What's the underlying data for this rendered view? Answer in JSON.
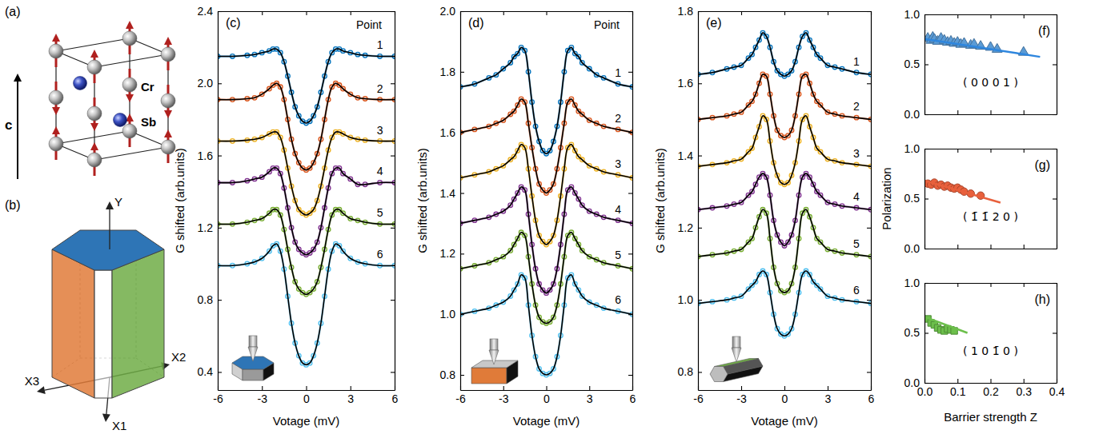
{
  "chart_data": [
    {
      "type": "line",
      "panel": "(c)",
      "x_label": "Votage (mV)",
      "y_label": "G shifted (arb.units)",
      "annotations": [
        "Point"
      ],
      "marker": "circle",
      "line_style": "solid",
      "xlim": [
        -6,
        6
      ],
      "xticks": [
        -6,
        -3,
        0,
        3,
        6
      ],
      "ylim": [
        0.3,
        2.4
      ],
      "yticks": [
        0.4,
        0.8,
        1.2,
        1.6,
        {
          "value": 2,
          "label": "2.0"
        },
        2.4
      ],
      "x": [
        -6,
        -5,
        -4,
        -3.5,
        -3,
        -2.5,
        -2.25,
        -2,
        -1.75,
        -1.5,
        -1.25,
        -1,
        -0.75,
        -0.5,
        -0.25,
        0,
        0.25,
        0.5,
        0.75,
        1,
        1.25,
        1.5,
        1.75,
        2,
        2.25,
        2.5,
        3,
        3.5,
        4,
        5,
        6
      ],
      "series": [
        {
          "name": "1",
          "color": "#0072bd",
          "values": [
            2.15,
            2.15,
            2.155,
            2.16,
            2.17,
            2.18,
            2.19,
            2.19,
            2.17,
            2.12,
            2.04,
            1.95,
            1.87,
            1.82,
            1.79,
            1.78,
            1.79,
            1.82,
            1.87,
            1.95,
            2.04,
            2.12,
            2.17,
            2.19,
            2.19,
            2.18,
            2.17,
            2.16,
            2.155,
            2.15,
            2.15
          ]
        },
        {
          "name": "2",
          "color": "#d95319",
          "values": [
            1.91,
            1.91,
            1.915,
            1.92,
            1.94,
            1.97,
            1.99,
            2.0,
            1.98,
            1.91,
            1.8,
            1.69,
            1.61,
            1.56,
            1.53,
            1.52,
            1.53,
            1.56,
            1.61,
            1.69,
            1.8,
            1.91,
            1.98,
            2.0,
            1.99,
            1.97,
            1.94,
            1.92,
            1.915,
            1.91,
            1.91
          ]
        },
        {
          "name": "3",
          "color": "#edb120",
          "values": [
            1.68,
            1.68,
            1.685,
            1.69,
            1.7,
            1.72,
            1.73,
            1.73,
            1.7,
            1.63,
            1.53,
            1.43,
            1.35,
            1.3,
            1.28,
            1.27,
            1.28,
            1.3,
            1.35,
            1.43,
            1.53,
            1.63,
            1.7,
            1.73,
            1.73,
            1.72,
            1.7,
            1.69,
            1.685,
            1.68,
            1.68
          ]
        },
        {
          "name": "4",
          "color": "#7e2f8e",
          "values": [
            1.45,
            1.45,
            1.46,
            1.47,
            1.48,
            1.51,
            1.53,
            1.53,
            1.5,
            1.42,
            1.31,
            1.2,
            1.12,
            1.08,
            1.06,
            1.05,
            1.06,
            1.08,
            1.12,
            1.2,
            1.31,
            1.42,
            1.5,
            1.53,
            1.53,
            1.5,
            1.47,
            1.44,
            1.44,
            1.45,
            1.45
          ]
        },
        {
          "name": "5",
          "color": "#77ac30",
          "values": [
            1.22,
            1.22,
            1.23,
            1.24,
            1.25,
            1.28,
            1.3,
            1.3,
            1.27,
            1.19,
            1.08,
            0.98,
            0.9,
            0.86,
            0.84,
            0.83,
            0.84,
            0.86,
            0.9,
            0.98,
            1.08,
            1.19,
            1.27,
            1.3,
            1.3,
            1.28,
            1.25,
            1.24,
            1.23,
            1.22,
            1.22
          ]
        },
        {
          "name": "6",
          "color": "#4dbeee",
          "values": [
            0.99,
            0.99,
            1.0,
            1.01,
            1.03,
            1.07,
            1.1,
            1.11,
            1.07,
            0.97,
            0.82,
            0.67,
            0.56,
            0.49,
            0.45,
            0.44,
            0.45,
            0.49,
            0.56,
            0.67,
            0.82,
            0.97,
            1.07,
            1.11,
            1.1,
            1.07,
            1.03,
            1.01,
            1.0,
            0.99,
            0.99
          ]
        }
      ]
    },
    {
      "type": "line",
      "panel": "(d)",
      "x_label": "Votage (mV)",
      "y_label": "G shifted (arb.units)",
      "annotations": [
        "Point"
      ],
      "marker": "circle",
      "line_style": "solid",
      "xlim": [
        -6,
        6
      ],
      "xticks": [
        -6,
        -3,
        0,
        3,
        6
      ],
      "ylim": [
        0.75,
        2.0
      ],
      "yticks": [
        0.8,
        {
          "value": 1,
          "label": "1.0"
        },
        1.2,
        1.4,
        1.6,
        1.8,
        {
          "value": 2,
          "label": "2.0"
        }
      ],
      "x": [
        -6,
        -5,
        -4,
        -3.5,
        -3,
        -2.5,
        -2.25,
        -2,
        -1.75,
        -1.5,
        -1.25,
        -1,
        -0.75,
        -0.5,
        -0.25,
        0,
        0.25,
        0.5,
        0.75,
        1,
        1.25,
        1.5,
        1.75,
        2,
        2.25,
        2.5,
        3,
        3.5,
        4,
        5,
        6
      ],
      "series": [
        {
          "name": "1",
          "color": "#0072bd",
          "values": [
            1.75,
            1.76,
            1.78,
            1.79,
            1.81,
            1.83,
            1.85,
            1.86,
            1.88,
            1.87,
            1.8,
            1.7,
            1.62,
            1.57,
            1.54,
            1.53,
            1.54,
            1.57,
            1.62,
            1.7,
            1.8,
            1.87,
            1.88,
            1.86,
            1.85,
            1.83,
            1.81,
            1.79,
            1.78,
            1.76,
            1.75
          ]
        },
        {
          "name": "2",
          "color": "#d95319",
          "values": [
            1.6,
            1.61,
            1.62,
            1.63,
            1.64,
            1.66,
            1.67,
            1.69,
            1.71,
            1.7,
            1.63,
            1.55,
            1.48,
            1.43,
            1.41,
            1.4,
            1.41,
            1.43,
            1.48,
            1.55,
            1.63,
            1.7,
            1.71,
            1.69,
            1.67,
            1.66,
            1.64,
            1.63,
            1.62,
            1.61,
            1.6
          ]
        },
        {
          "name": "3",
          "color": "#edb120",
          "values": [
            1.45,
            1.46,
            1.47,
            1.48,
            1.49,
            1.51,
            1.52,
            1.54,
            1.56,
            1.55,
            1.48,
            1.39,
            1.31,
            1.26,
            1.24,
            1.23,
            1.24,
            1.26,
            1.31,
            1.39,
            1.48,
            1.55,
            1.56,
            1.54,
            1.52,
            1.51,
            1.49,
            1.48,
            1.47,
            1.46,
            1.45
          ]
        },
        {
          "name": "4",
          "color": "#7e2f8e",
          "values": [
            1.3,
            1.31,
            1.32,
            1.33,
            1.34,
            1.36,
            1.38,
            1.4,
            1.42,
            1.41,
            1.33,
            1.23,
            1.15,
            1.1,
            1.08,
            1.07,
            1.08,
            1.1,
            1.15,
            1.23,
            1.33,
            1.41,
            1.42,
            1.4,
            1.38,
            1.36,
            1.34,
            1.33,
            1.32,
            1.31,
            1.3
          ]
        },
        {
          "name": "5",
          "color": "#77ac30",
          "values": [
            1.15,
            1.16,
            1.17,
            1.18,
            1.19,
            1.21,
            1.23,
            1.25,
            1.27,
            1.26,
            1.19,
            1.1,
            1.03,
            0.99,
            0.975,
            0.97,
            0.975,
            0.99,
            1.03,
            1.1,
            1.19,
            1.26,
            1.27,
            1.25,
            1.23,
            1.21,
            1.19,
            1.18,
            1.17,
            1.16,
            1.15
          ]
        },
        {
          "name": "6",
          "color": "#4dbeee",
          "values": [
            1.0,
            1.01,
            1.02,
            1.03,
            1.04,
            1.06,
            1.08,
            1.1,
            1.13,
            1.12,
            1.03,
            0.93,
            0.86,
            0.82,
            0.805,
            0.8,
            0.805,
            0.82,
            0.86,
            0.93,
            1.03,
            1.12,
            1.13,
            1.1,
            1.08,
            1.06,
            1.04,
            1.03,
            1.02,
            1.01,
            1.0
          ]
        }
      ]
    },
    {
      "type": "line",
      "panel": "(e)",
      "x_label": "Votage (mV)",
      "y_label": "G shifted (arb.units)",
      "marker": "circle",
      "line_style": "solid",
      "xlim": [
        -6,
        6
      ],
      "xticks": [
        -6,
        -3,
        0,
        3,
        6
      ],
      "ylim": [
        0.75,
        1.8
      ],
      "yticks": [
        0.8,
        {
          "value": 1,
          "label": "1.0"
        },
        1.2,
        1.4,
        1.6,
        1.8
      ],
      "x": [
        -6,
        -5,
        -4,
        -3.5,
        -3,
        -2.5,
        -2.25,
        -2,
        -1.75,
        -1.5,
        -1.25,
        -1,
        -0.75,
        -0.5,
        -0.25,
        0,
        0.25,
        0.5,
        0.75,
        1,
        1.25,
        1.5,
        1.75,
        2,
        2.25,
        2.5,
        3,
        3.5,
        4,
        5,
        6
      ],
      "series": [
        {
          "name": "1",
          "color": "#0072bd",
          "values": [
            1.625,
            1.63,
            1.64,
            1.645,
            1.65,
            1.67,
            1.68,
            1.7,
            1.72,
            1.74,
            1.73,
            1.7,
            1.66,
            1.635,
            1.625,
            1.62,
            1.625,
            1.635,
            1.66,
            1.7,
            1.73,
            1.74,
            1.72,
            1.7,
            1.68,
            1.67,
            1.65,
            1.645,
            1.64,
            1.63,
            1.625
          ]
        },
        {
          "name": "2",
          "color": "#d95319",
          "values": [
            1.5,
            1.505,
            1.51,
            1.515,
            1.52,
            1.54,
            1.55,
            1.57,
            1.6,
            1.625,
            1.62,
            1.57,
            1.51,
            1.47,
            1.455,
            1.45,
            1.455,
            1.47,
            1.51,
            1.57,
            1.62,
            1.625,
            1.6,
            1.57,
            1.55,
            1.54,
            1.52,
            1.515,
            1.51,
            1.505,
            1.5
          ]
        },
        {
          "name": "3",
          "color": "#edb120",
          "values": [
            1.37,
            1.375,
            1.38,
            1.385,
            1.39,
            1.41,
            1.42,
            1.45,
            1.48,
            1.51,
            1.5,
            1.44,
            1.38,
            1.345,
            1.325,
            1.32,
            1.325,
            1.345,
            1.38,
            1.44,
            1.5,
            1.51,
            1.48,
            1.45,
            1.42,
            1.41,
            1.39,
            1.385,
            1.38,
            1.375,
            1.37
          ]
        },
        {
          "name": "4",
          "color": "#7e2f8e",
          "values": [
            1.25,
            1.255,
            1.26,
            1.265,
            1.27,
            1.29,
            1.3,
            1.32,
            1.34,
            1.35,
            1.34,
            1.29,
            1.22,
            1.18,
            1.16,
            1.15,
            1.16,
            1.18,
            1.22,
            1.29,
            1.34,
            1.35,
            1.34,
            1.32,
            1.3,
            1.29,
            1.27,
            1.265,
            1.26,
            1.255,
            1.25
          ]
        },
        {
          "name": "5",
          "color": "#77ac30",
          "values": [
            1.12,
            1.125,
            1.13,
            1.135,
            1.14,
            1.16,
            1.17,
            1.2,
            1.23,
            1.25,
            1.24,
            1.17,
            1.09,
            1.045,
            1.025,
            1.02,
            1.025,
            1.045,
            1.09,
            1.17,
            1.24,
            1.25,
            1.23,
            1.2,
            1.17,
            1.16,
            1.14,
            1.135,
            1.13,
            1.125,
            1.12
          ]
        },
        {
          "name": "6",
          "color": "#4dbeee",
          "values": [
            0.99,
            0.995,
            1.0,
            1.005,
            1.01,
            1.03,
            1.04,
            1.05,
            1.07,
            1.08,
            1.07,
            1.02,
            0.96,
            0.92,
            0.905,
            0.9,
            0.905,
            0.92,
            0.96,
            1.02,
            1.07,
            1.08,
            1.07,
            1.05,
            1.04,
            1.03,
            1.01,
            1.005,
            1.0,
            0.995,
            0.99
          ]
        }
      ]
    },
    {
      "type": "scatter",
      "panel": "(f)",
      "title": "( 0 0 0 1 )",
      "tick_labels": "y",
      "xlim": [
        0,
        0.4
      ],
      "xticks": [
        0,
        0.1,
        0.2,
        0.3,
        0.4
      ],
      "ylim": [
        0,
        1
      ],
      "yticks": [
        {
          "value": 0,
          "label": "0.0"
        },
        0.5,
        {
          "value": 1,
          "label": "1.0"
        }
      ],
      "series": [
        {
          "type": "scatter",
          "marker": "triangle",
          "color": "#5b9bd5",
          "x": [
            0.01,
            0.02,
            0.025,
            0.03,
            0.04,
            0.05,
            0.06,
            0.07,
            0.08,
            0.09,
            0.1,
            0.11,
            0.12,
            0.14,
            0.15,
            0.17,
            0.2,
            0.22,
            0.3
          ],
          "values": [
            0.76,
            0.74,
            0.77,
            0.75,
            0.73,
            0.76,
            0.74,
            0.72,
            0.73,
            0.71,
            0.72,
            0.7,
            0.71,
            0.69,
            0.7,
            0.68,
            0.67,
            0.65,
            0.62
          ]
        },
        {
          "type": "line",
          "line_style": "solid",
          "color": "#2e86de",
          "x": [
            0,
            0.35
          ],
          "values": [
            0.755,
            0.575
          ]
        }
      ]
    },
    {
      "type": "scatter",
      "panel": "(g)",
      "title": "( 1̄ 1̄ 2 0 )",
      "y_label": "Polarization",
      "tick_labels": "y",
      "xlim": [
        0,
        0.4
      ],
      "xticks": [
        0,
        0.1,
        0.2,
        0.3,
        0.4
      ],
      "ylim": [
        0,
        1
      ],
      "yticks": [
        {
          "value": 0,
          "label": "0.0"
        },
        0.5,
        {
          "value": 1,
          "label": "1.0"
        }
      ],
      "series": [
        {
          "type": "scatter",
          "marker": "circle",
          "color": "#e8603c",
          "x": [
            0.01,
            0.02,
            0.03,
            0.04,
            0.05,
            0.06,
            0.07,
            0.08,
            0.09,
            0.1,
            0.11,
            0.12,
            0.14,
            0.17
          ],
          "values": [
            0.65,
            0.64,
            0.66,
            0.63,
            0.64,
            0.62,
            0.63,
            0.61,
            0.6,
            0.61,
            0.59,
            0.57,
            0.55,
            0.53
          ]
        },
        {
          "type": "line",
          "line_style": "solid",
          "color": "#e8603c",
          "x": [
            0,
            0.23
          ],
          "values": [
            0.68,
            0.46
          ]
        }
      ]
    },
    {
      "type": "scatter",
      "panel": "(h)",
      "title": "( 1 0 1̄ 0 )",
      "x_label": "Barrier strength Z",
      "xlim": [
        0,
        0.4
      ],
      "xticks": [
        {
          "value": 0,
          "label": "0.0"
        },
        0.1,
        0.2,
        0.3,
        0.4
      ],
      "ylim": [
        0,
        1
      ],
      "yticks": [
        {
          "value": 0,
          "label": "0.0"
        },
        0.5,
        {
          "value": 1,
          "label": "1.0"
        }
      ],
      "series": [
        {
          "type": "scatter",
          "marker": "square",
          "color": "#6cbf4b",
          "x": [
            0.01,
            0.02,
            0.03,
            0.04,
            0.05,
            0.06,
            0.07,
            0.08,
            0.09
          ],
          "values": [
            0.64,
            0.6,
            0.58,
            0.55,
            0.53,
            0.52,
            0.54,
            0.53,
            0.52
          ]
        },
        {
          "type": "line",
          "line_style": "solid",
          "color": "#6cbf4b",
          "x": [
            0,
            0.13
          ],
          "values": [
            0.66,
            0.5
          ]
        }
      ]
    }
  ],
  "diagrams": [
    {
      "panel": "(a)",
      "axis": "c",
      "atoms": [
        "Cr",
        "Sb"
      ]
    },
    {
      "panel": "(b)",
      "axes": [
        "Y",
        "X1",
        "X2",
        "X3"
      ]
    }
  ]
}
